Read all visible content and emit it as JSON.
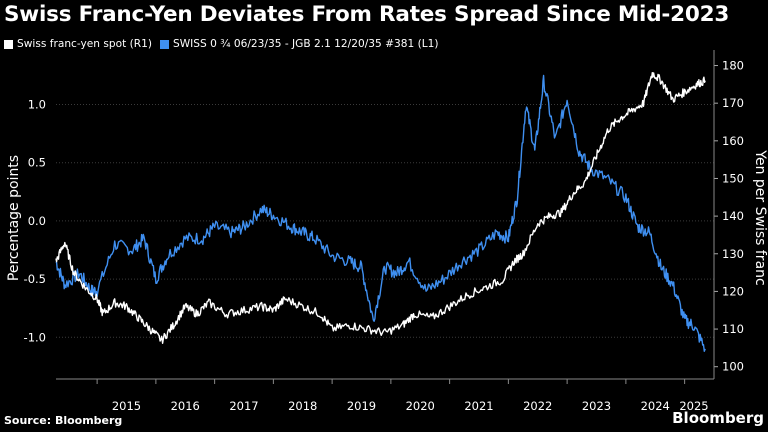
{
  "chart_data": {
    "type": "line",
    "title": "Swiss Franc-Yen Deviates From Rates Spread Since Mid-2023",
    "ylabel_left": "Percentage points",
    "ylabel_right": "Yen per Swiss franc",
    "x_ticks": [
      "2015",
      "2016",
      "2017",
      "2018",
      "2019",
      "2020",
      "2021",
      "2022",
      "2023",
      "2024",
      "2025"
    ],
    "y_left_ticks": [
      "1.0",
      "0.5",
      "0.0",
      "-0.5",
      "-1.0"
    ],
    "y_left_range": [
      -1.35,
      1.4
    ],
    "y_right_ticks": [
      "180",
      "170",
      "160",
      "150",
      "140",
      "130",
      "120",
      "110",
      "100"
    ],
    "y_right_range": [
      97,
      182
    ],
    "x_range": [
      2014.3,
      2025.5
    ],
    "grid": true,
    "legend_position": "top-left",
    "series": [
      {
        "name": "Swiss franc-yen spot (R1)",
        "axis": "right",
        "color": "#ffffff",
        "x": [
          2014.3,
          2014.45,
          2014.6,
          2014.8,
          2015.0,
          2015.1,
          2015.3,
          2015.5,
          2015.7,
          2015.9,
          2016.1,
          2016.3,
          2016.5,
          2016.7,
          2016.9,
          2017.2,
          2017.5,
          2017.8,
          2018.0,
          2018.2,
          2018.5,
          2018.8,
          2019.0,
          2019.3,
          2019.6,
          2019.9,
          2020.2,
          2020.4,
          2020.7,
          2021.0,
          2021.3,
          2021.6,
          2021.9,
          2022.1,
          2022.25,
          2022.5,
          2022.7,
          2022.9,
          2023.1,
          2023.3,
          2023.5,
          2023.7,
          2023.9,
          2024.1,
          2024.3,
          2024.45,
          2024.6,
          2024.8,
          2025.0,
          2025.2,
          2025.35
        ],
        "values": [
          128,
          133,
          125,
          121,
          118,
          114,
          117,
          116,
          113,
          110,
          107,
          111,
          116,
          114,
          117,
          114,
          115,
          116,
          115,
          118,
          116,
          114,
          110,
          111,
          110,
          109,
          111,
          114,
          113,
          116,
          119,
          121,
          123,
          128,
          130,
          138,
          140,
          141,
          146,
          149,
          156,
          163,
          166,
          168,
          170,
          178,
          176,
          171,
          173,
          175,
          176
        ]
      },
      {
        "name": "SWISS 0 ¾ 06/23/35 - JGB 2.1 12/20/35 #381 (L1)",
        "axis": "left",
        "color": "#3f8ff0",
        "x": [
          2014.3,
          2014.45,
          2014.7,
          2014.9,
          2015.0,
          2015.3,
          2015.6,
          2015.8,
          2016.0,
          2016.2,
          2016.5,
          2016.8,
          2017.0,
          2017.3,
          2017.5,
          2017.8,
          2018.0,
          2018.3,
          2018.5,
          2018.7,
          2019.0,
          2019.3,
          2019.5,
          2019.7,
          2019.9,
          2020.1,
          2020.3,
          2020.6,
          2020.9,
          2021.2,
          2021.5,
          2021.8,
          2022.0,
          2022.15,
          2022.3,
          2022.45,
          2022.6,
          2022.8,
          2023.0,
          2023.2,
          2023.4,
          2023.7,
          2024.0,
          2024.2,
          2024.4,
          2024.6,
          2024.8,
          2025.0,
          2025.15,
          2025.35
        ],
        "values": [
          -0.35,
          -0.55,
          -0.45,
          -0.6,
          -0.6,
          -0.2,
          -0.25,
          -0.15,
          -0.5,
          -0.3,
          -0.15,
          -0.15,
          -0.05,
          -0.1,
          -0.05,
          0.1,
          0.05,
          -0.05,
          -0.1,
          -0.15,
          -0.3,
          -0.35,
          -0.4,
          -0.85,
          -0.4,
          -0.45,
          -0.35,
          -0.6,
          -0.5,
          -0.35,
          -0.25,
          -0.1,
          -0.15,
          0.2,
          1.0,
          0.6,
          1.2,
          0.7,
          1.05,
          0.6,
          0.45,
          0.35,
          0.2,
          -0.05,
          -0.1,
          -0.4,
          -0.55,
          -0.85,
          -0.9,
          -1.1
        ]
      }
    ]
  },
  "footer": {
    "source": "Source: Bloomberg",
    "brand": "Bloomberg"
  }
}
